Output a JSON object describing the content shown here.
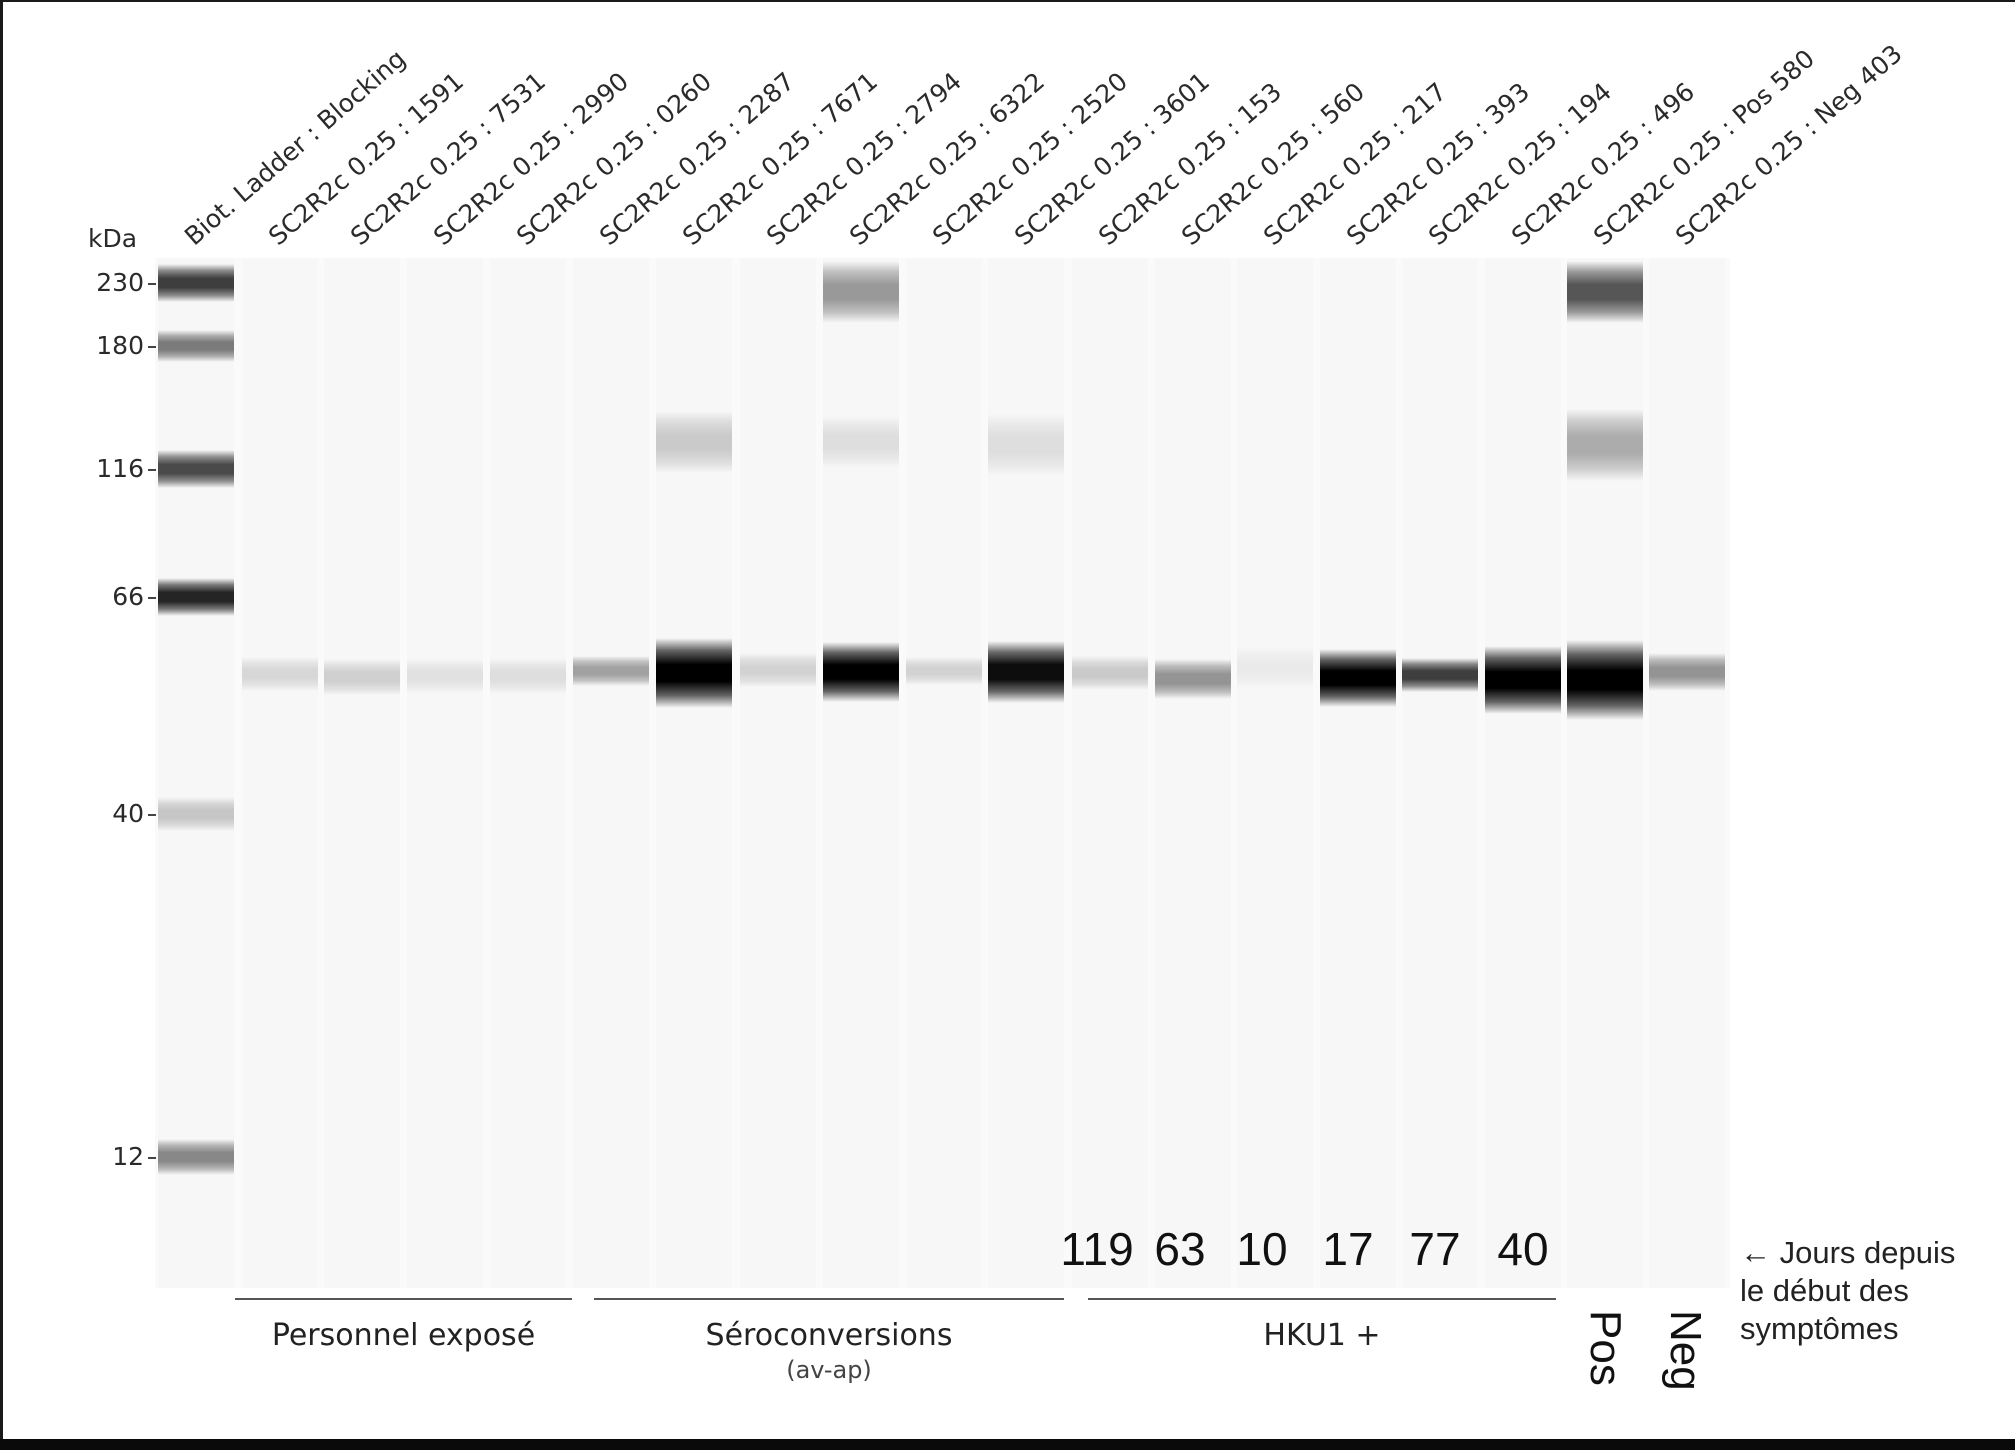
{
  "lane_labels": [
    "Biot. Ladder : Blocking",
    "SC2R2c 0.25 : 1591",
    "SC2R2c 0.25 : 7531",
    "SC2R2c 0.25 : 2990",
    "SC2R2c 0.25 : 0260",
    "SC2R2c 0.25 : 2287",
    "SC2R2c 0.25 : 7671",
    "SC2R2c 0.25 : 2794",
    "SC2R2c 0.25 : 6322",
    "SC2R2c 0.25 : 2520",
    "SC2R2c 0.25 : 3601",
    "SC2R2c 0.25 : 153",
    "SC2R2c 0.25 : 560",
    "SC2R2c 0.25 : 217",
    "SC2R2c 0.25 : 393",
    "SC2R2c 0.25 : 194",
    "SC2R2c 0.25 : 496",
    "SC2R2c 0.25 : Pos 580",
    "SC2R2c 0.25 : Neg 403"
  ],
  "axis": {
    "unit": "kDa",
    "markers": [
      "230",
      "180",
      "116",
      "66",
      "40",
      "12"
    ]
  },
  "groups": [
    {
      "label": "Personnel exposé",
      "sublabel": ""
    },
    {
      "label": "Séroconversions",
      "sublabel": "(av-ap)"
    },
    {
      "label": "HKU1 +",
      "sublabel": ""
    }
  ],
  "days": [
    "119",
    "63",
    "10",
    "17",
    "77",
    "40"
  ],
  "control_labels": {
    "pos": "Pos",
    "neg": "Neg"
  },
  "note": {
    "line1": "← Jours depuis",
    "line2": "le début des",
    "line3": "symptômes"
  },
  "colors": {
    "background": "#ffffff",
    "gel": "#f7f7f7",
    "band_dark": "#000000"
  }
}
